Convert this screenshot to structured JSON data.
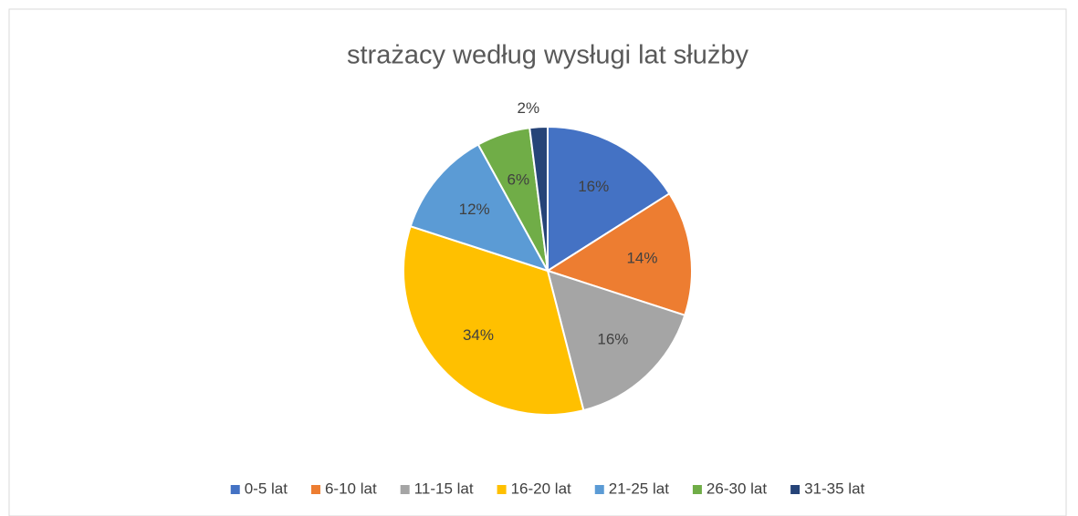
{
  "chart_data": {
    "type": "pie",
    "title": "strażacy według wysługi lat służby",
    "categories": [
      "0-5 lat",
      "6-10 lat",
      "11-15 lat",
      "16-20 lat",
      "21-25 lat",
      "26-30 lat",
      "31-35 lat"
    ],
    "values": [
      16,
      14,
      16,
      34,
      12,
      6,
      2
    ],
    "value_labels": [
      "16%",
      "14%",
      "16%",
      "34%",
      "12%",
      "6%",
      "2%"
    ],
    "colors": [
      "#4472c4",
      "#ed7d31",
      "#a5a5a5",
      "#ffc000",
      "#5b9bd5",
      "#70ad47",
      "#264478"
    ],
    "legend": "bottom"
  }
}
